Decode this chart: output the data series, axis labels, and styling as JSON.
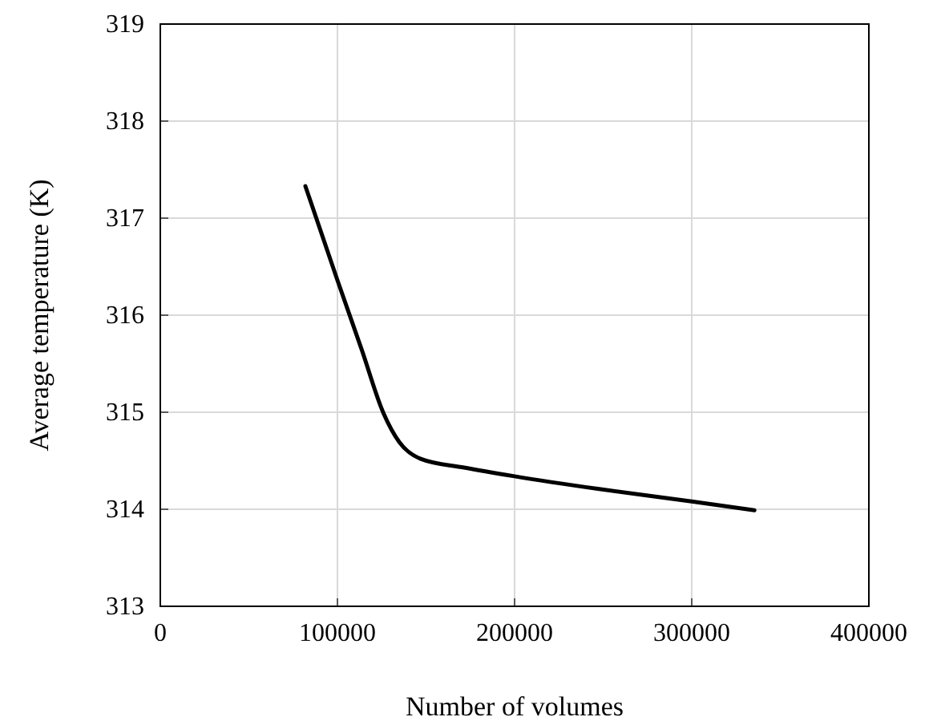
{
  "chart_data": {
    "type": "line",
    "xlabel": "Number of volumes",
    "ylabel": "Average temperature (K)",
    "x": [
      81900,
      100000,
      113800,
      126000,
      135000,
      147000,
      171500,
      200000,
      247000,
      300000,
      335400
    ],
    "series": [
      {
        "color": "#000000",
        "values": [
          317.33,
          316.36,
          315.64,
          314.99,
          314.69,
          314.52,
          314.43,
          314.34,
          314.21,
          314.08,
          313.99
        ]
      }
    ],
    "xlim": [
      0,
      400000
    ],
    "xticks": [
      0,
      100000,
      200000,
      300000,
      400000
    ],
    "ylim": [
      313,
      319
    ],
    "yticks": [
      313,
      314,
      315,
      316,
      317,
      318,
      319
    ],
    "grid": true,
    "marker": "none",
    "line_style": "solid"
  }
}
